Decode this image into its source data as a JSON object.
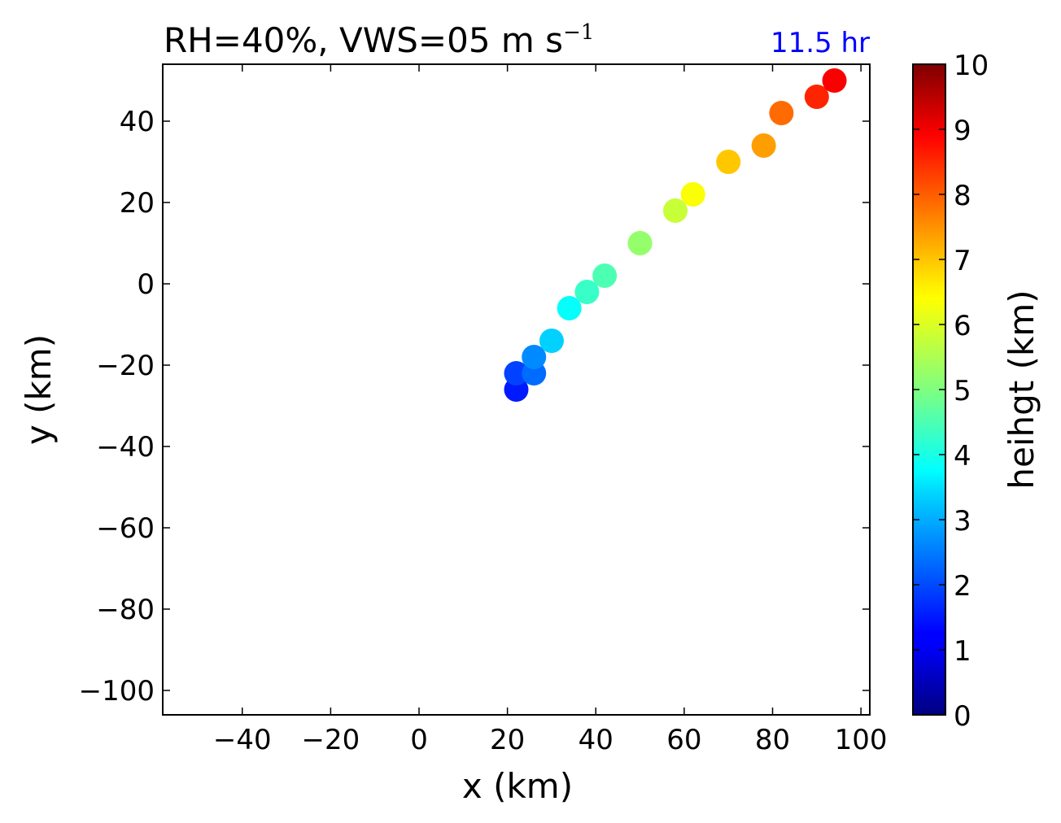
{
  "chart_data": {
    "type": "scatter",
    "title": "RH=40%, VWS=05 m s",
    "title_superscript": "−1",
    "annotation": "11.5 hr",
    "annotation_color": "#0000ff",
    "xlabel": "x (km)",
    "ylabel": "y (km)",
    "xlim": [
      -58,
      102
    ],
    "ylim": [
      -106,
      54
    ],
    "xticks": [
      -40,
      -20,
      0,
      20,
      40,
      60,
      80,
      100
    ],
    "yticks": [
      -100,
      -80,
      -60,
      -40,
      -20,
      0,
      20,
      40
    ],
    "colormap": "jet",
    "colorbar": {
      "label": "heihgt (km)",
      "range": [
        0,
        10
      ],
      "ticks": [
        0,
        1,
        2,
        3,
        4,
        5,
        6,
        7,
        8,
        9,
        10
      ]
    },
    "points": [
      {
        "x": 22,
        "y": -26,
        "height": 1.5
      },
      {
        "x": 22,
        "y": -22,
        "height": 1.9
      },
      {
        "x": 26,
        "y": -22,
        "height": 2.3
      },
      {
        "x": 26,
        "y": -18,
        "height": 2.6
      },
      {
        "x": 30,
        "y": -14,
        "height": 3.3
      },
      {
        "x": 34,
        "y": -6,
        "height": 3.8
      },
      {
        "x": 38,
        "y": -2,
        "height": 4.3
      },
      {
        "x": 42,
        "y": 2,
        "height": 4.5
      },
      {
        "x": 50,
        "y": 10,
        "height": 5.2
      },
      {
        "x": 58,
        "y": 18,
        "height": 5.7
      },
      {
        "x": 62,
        "y": 22,
        "height": 6.2
      },
      {
        "x": 70,
        "y": 30,
        "height": 6.8
      },
      {
        "x": 78,
        "y": 34,
        "height": 7.2
      },
      {
        "x": 82,
        "y": 42,
        "height": 7.7
      },
      {
        "x": 90,
        "y": 46,
        "height": 8.4
      },
      {
        "x": 94,
        "y": 50,
        "height": 8.8
      }
    ]
  }
}
